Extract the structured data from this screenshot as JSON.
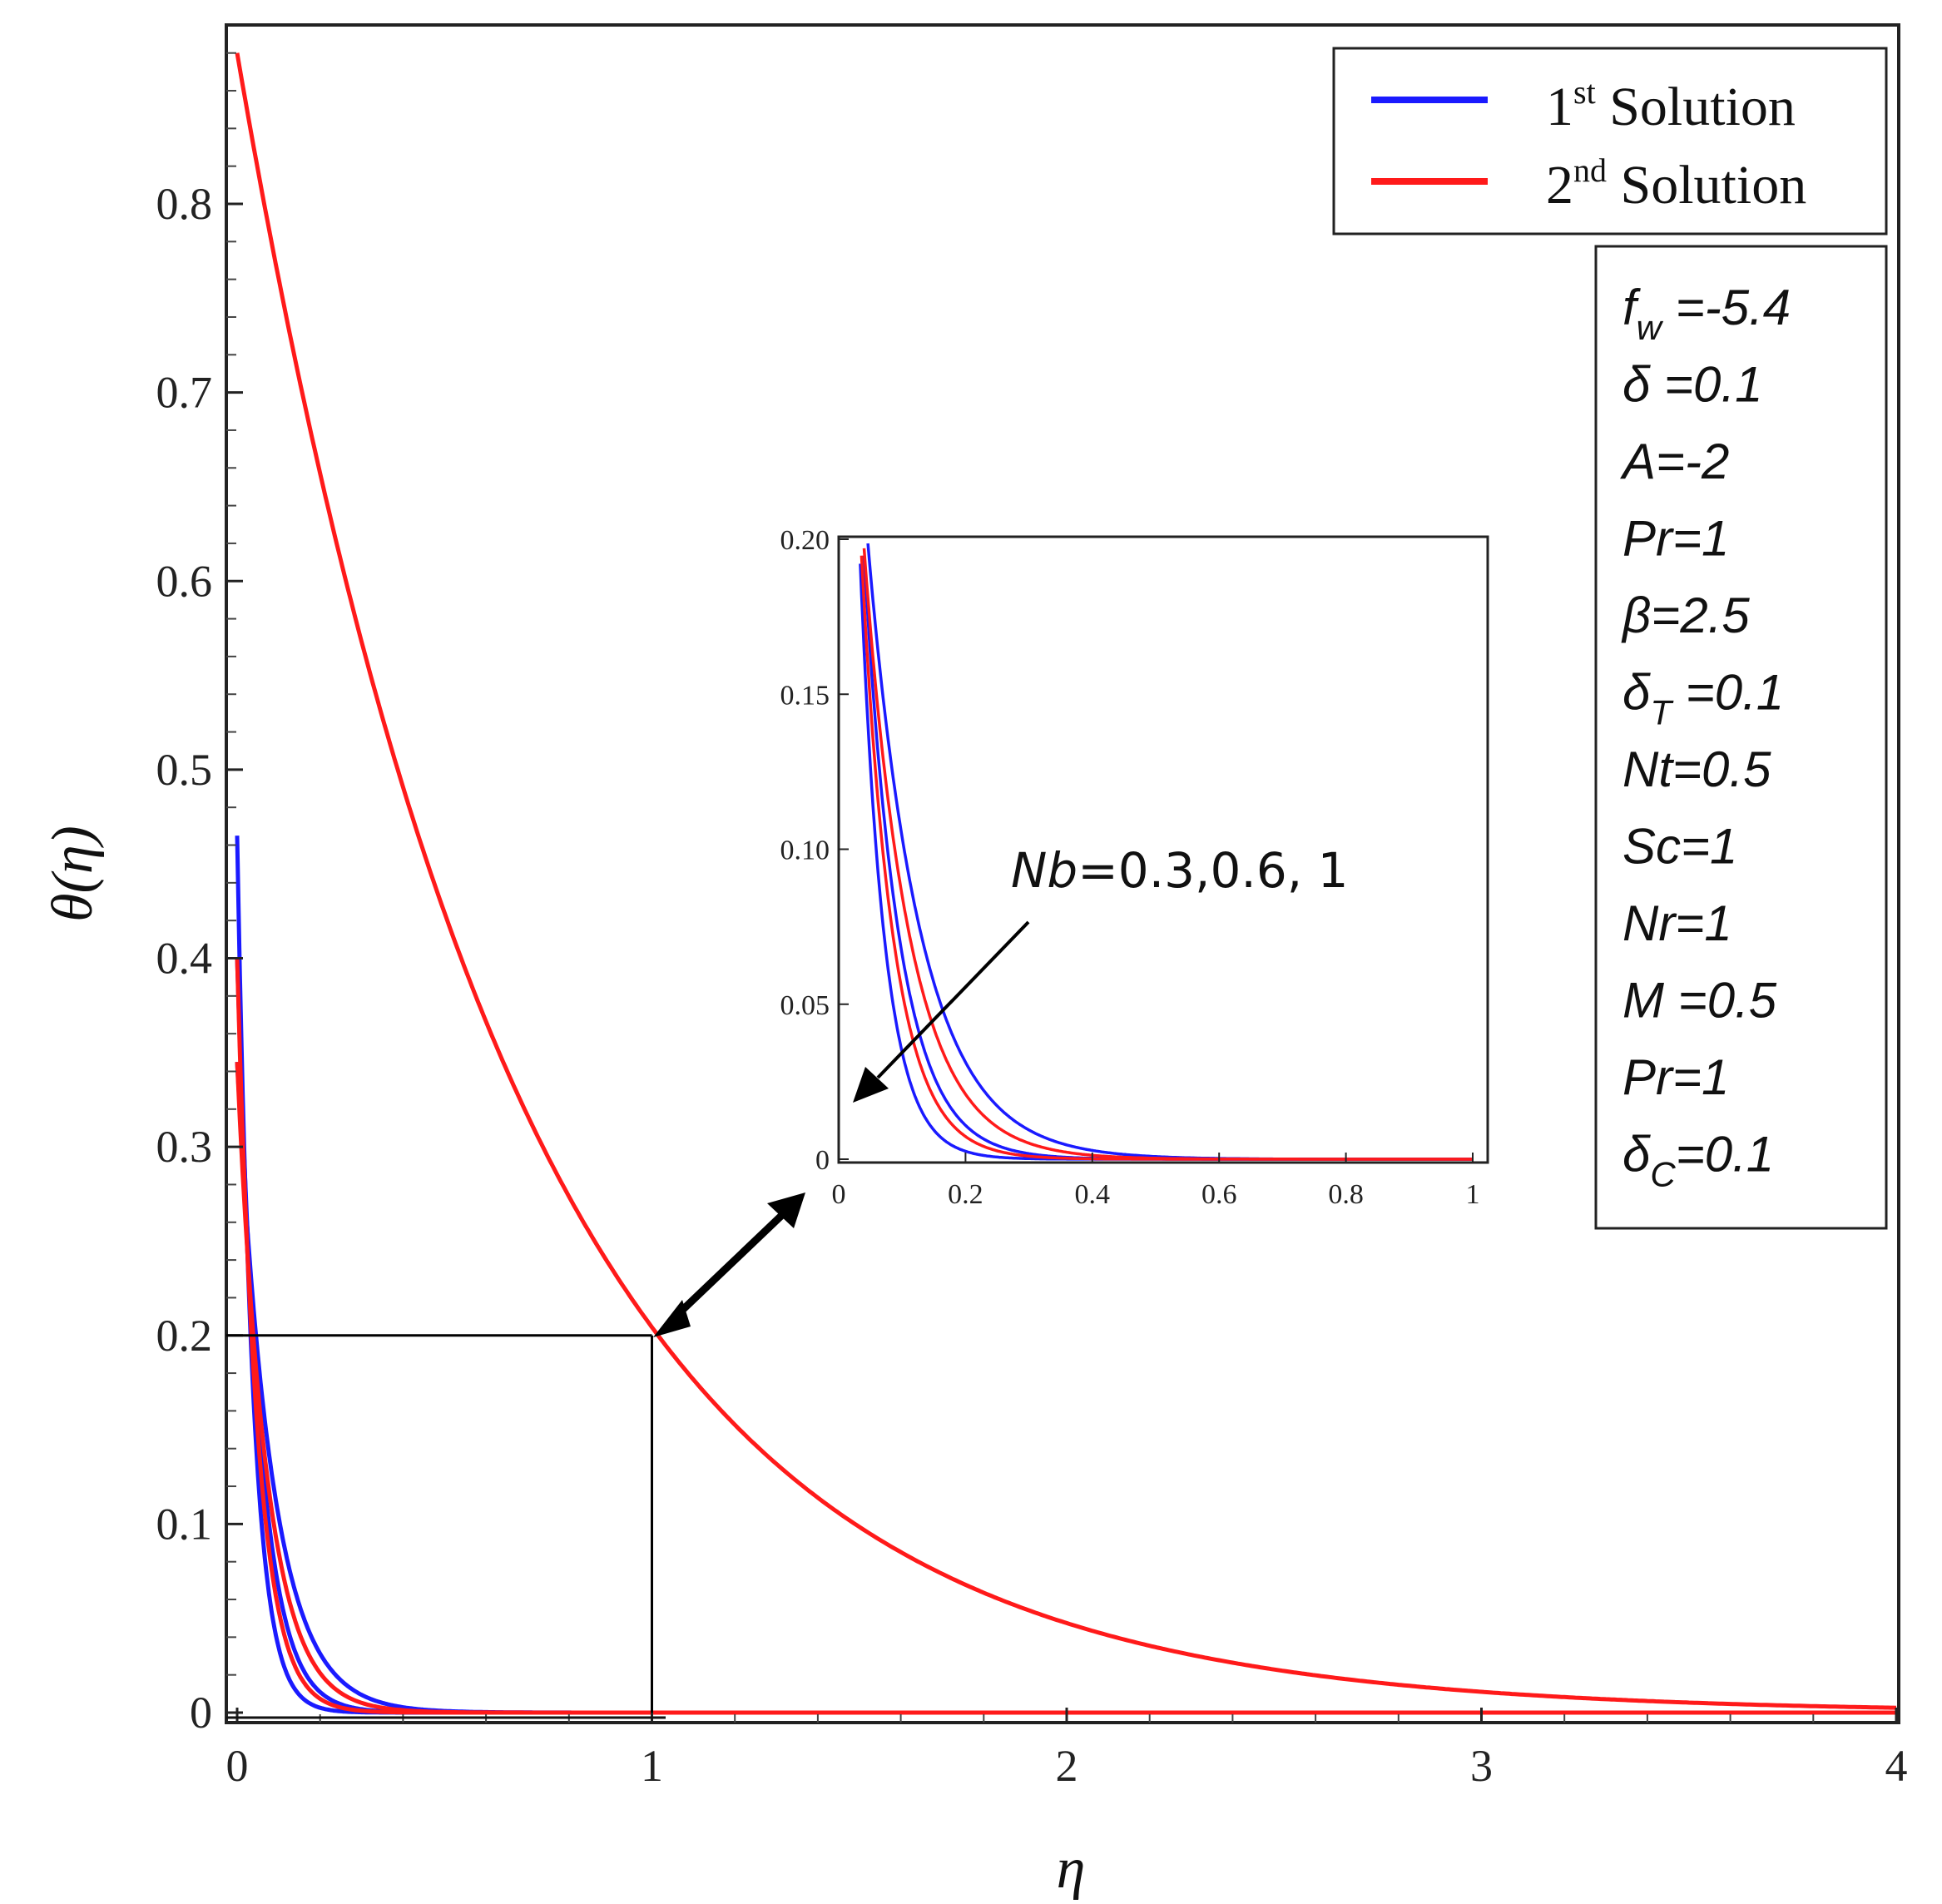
{
  "chart_data": {
    "type": "line",
    "xlabel": "η",
    "ylabel": "θ(η)",
    "xlim": [
      0,
      4
    ],
    "ylim": [
      0,
      0.9
    ],
    "x_ticks": [
      "0",
      "1",
      "2",
      "3",
      "4"
    ],
    "y_ticks": [
      "0",
      "0.1",
      "0.2",
      "0.3",
      "0.4",
      "0.5",
      "0.6",
      "0.7",
      "0.8"
    ],
    "legend": {
      "position": "top-right",
      "entries": [
        {
          "base": "1",
          "sup": "st",
          "text": " Solution",
          "color": "#1a1aff"
        },
        {
          "base": "2",
          "sup": "nd",
          "text": " Solution",
          "color": "#ff1a1a"
        }
      ]
    },
    "parameters": [
      "f_w =-5.4",
      "δ =0.1",
      "A=-2",
      "Pr=1",
      "β=2.5",
      "δ_T =0.1",
      "Nt=0.5",
      "Sc=1",
      "Nr=1",
      "M =0.5",
      "Pr=1",
      "δ_C=0.1"
    ],
    "annotation": {
      "label": "Nb",
      "values": "=0.3,0.6, 1"
    },
    "zoom_box": {
      "x_range": [
        0,
        1
      ],
      "y_range": [
        0,
        0.2
      ]
    },
    "series": [
      {
        "name": "1st Solution, Nb=0.3",
        "solution": 1,
        "color": "#1a1aff",
        "theta0": 0.465,
        "decay": 26,
        "x_end": 2
      },
      {
        "name": "1st Solution, Nb=0.6",
        "solution": 1,
        "color": "#1a1aff",
        "theta0": 0.4,
        "decay": 18,
        "x_end": 2
      },
      {
        "name": "1st Solution, Nb=1",
        "solution": 1,
        "color": "#1a1aff",
        "theta0": 0.345,
        "decay": 12,
        "x_end": 2
      },
      {
        "name": "2nd Solution, Nb=0.3",
        "solution": 2,
        "color": "#ff1a1a",
        "theta0": 0.4,
        "decay": 20,
        "x_end": 4
      },
      {
        "name": "2nd Solution, Nb=0.6",
        "solution": 2,
        "color": "#ff1a1a",
        "theta0": 0.345,
        "decay": 14,
        "x_end": 4
      },
      {
        "name": "2nd Solution, Nb=1",
        "solution": 2,
        "color": "#ff1a1a",
        "theta0": 0.88,
        "decay": 1.46,
        "x_end": 4
      }
    ],
    "inset": {
      "xlim": [
        0,
        1
      ],
      "ylim": [
        0,
        0.2
      ],
      "x_ticks": [
        "0",
        "0.2",
        "0.4",
        "0.6",
        "0.8",
        "1"
      ],
      "y_ticks": [
        "0",
        "0.05",
        "0.10",
        "0.15",
        "0.20"
      ],
      "series": [
        {
          "name": "inset blue 1",
          "color": "#1a1aff",
          "theta0": 0.465,
          "decay": 26
        },
        {
          "name": "inset blue 2",
          "color": "#1a1aff",
          "theta0": 0.4,
          "decay": 18
        },
        {
          "name": "inset blue 3",
          "color": "#1a1aff",
          "theta0": 0.345,
          "decay": 12
        },
        {
          "name": "inset red 1",
          "color": "#ff1a1a",
          "theta0": 0.4,
          "decay": 20
        },
        {
          "name": "inset red 2",
          "color": "#ff1a1a",
          "theta0": 0.345,
          "decay": 14
        }
      ]
    }
  }
}
